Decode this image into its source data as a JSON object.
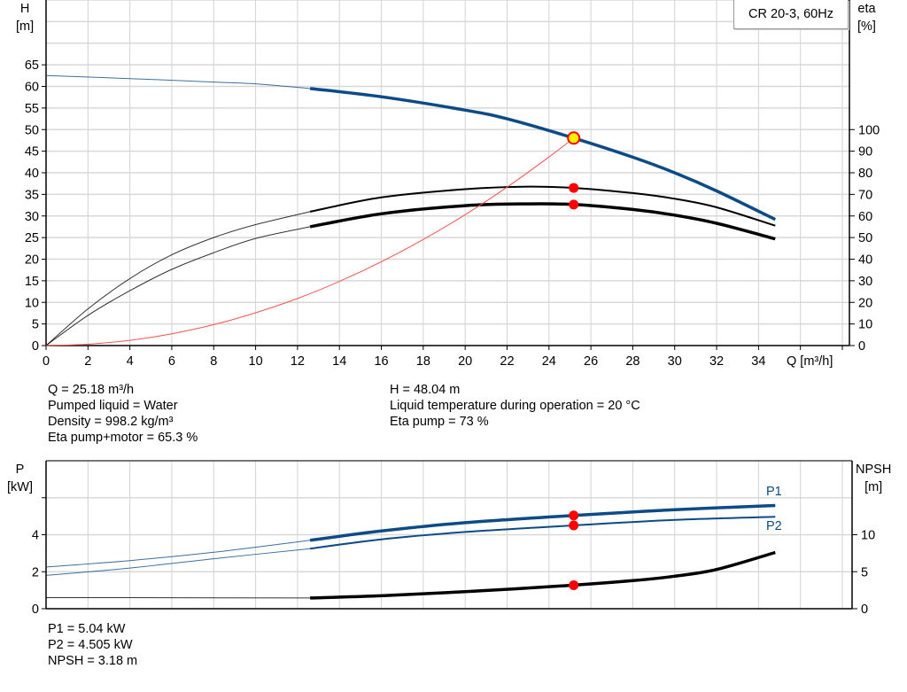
{
  "legend": "CR 20-3, 60Hz",
  "chart_data": [
    {
      "type": "line",
      "name_shown": "",
      "x_axis": {
        "label": "Q [m³/h]",
        "range": [
          0,
          38
        ],
        "ticks": [
          0,
          2,
          4,
          6,
          8,
          10,
          12,
          14,
          16,
          18,
          20,
          22,
          24,
          26,
          28,
          30,
          32,
          34
        ],
        "grid_step": 2
      },
      "y_axis_left": {
        "label_line1": "H",
        "label_line2": "[m]",
        "range": [
          0,
          80
        ],
        "ticks": [
          0,
          5,
          10,
          15,
          20,
          25,
          30,
          35,
          40,
          45,
          50,
          55,
          60,
          65
        ],
        "grid_step": 5
      },
      "y_axis_right": {
        "label_line1": "eta",
        "label_line2": "[%]",
        "range": [
          0,
          160
        ],
        "ticks": [
          0,
          10,
          20,
          30,
          40,
          50,
          60,
          70,
          80,
          90,
          100
        ]
      },
      "grid": true,
      "series": [
        {
          "id": "H",
          "axis": "left",
          "color": "#0c4a88",
          "thin": [
            [
              0,
              62.5
            ],
            [
              4,
              61.8
            ],
            [
              8,
              61.0
            ],
            [
              10,
              60.6
            ],
            [
              12.6,
              59.5
            ]
          ],
          "thick": [
            [
              12.6,
              59.5
            ],
            [
              16,
              57.6
            ],
            [
              20,
              54.5
            ],
            [
              22,
              52.5
            ],
            [
              25.18,
              48.04
            ],
            [
              28,
              43.6
            ],
            [
              30,
              40.0
            ],
            [
              32,
              35.8
            ],
            [
              34.8,
              29.2
            ]
          ]
        },
        {
          "id": "eta-pump",
          "axis": "right",
          "color": "#000000",
          "thin": [
            [
              0,
              0
            ],
            [
              2,
              17
            ],
            [
              4,
              31
            ],
            [
              6,
              42
            ],
            [
              8,
              50
            ],
            [
              10,
              56
            ],
            [
              12.6,
              62
            ]
          ],
          "thick": [
            [
              12.6,
              62
            ],
            [
              16,
              68.6
            ],
            [
              20,
              72.4
            ],
            [
              23,
              73.6
            ],
            [
              25.18,
              73
            ],
            [
              28,
              70.6
            ],
            [
              30,
              68
            ],
            [
              32,
              64
            ],
            [
              34.8,
              55.5
            ]
          ]
        },
        {
          "id": "eta-pump-motor",
          "axis": "right",
          "color": "#000000",
          "thin": [
            [
              0,
              0
            ],
            [
              2,
              14
            ],
            [
              4,
              25.4
            ],
            [
              6,
              35.3
            ],
            [
              8,
              43
            ],
            [
              10,
              49.6
            ],
            [
              12.6,
              55
            ]
          ],
          "thick": [
            [
              12.6,
              55
            ],
            [
              16,
              61
            ],
            [
              20,
              64.8
            ],
            [
              23,
              65.6
            ],
            [
              25.18,
              65.3
            ],
            [
              28,
              63
            ],
            [
              30,
              60.4
            ],
            [
              32,
              56.6
            ],
            [
              34.8,
              49.4
            ]
          ]
        },
        {
          "id": "system-curve",
          "axis": "left",
          "color": "#ff5050",
          "thin": [
            [
              0,
              0
            ],
            [
              2,
              0.3
            ],
            [
              4,
              1.21
            ],
            [
              6,
              2.73
            ],
            [
              8,
              4.85
            ],
            [
              10,
              7.58
            ],
            [
              12,
              10.9
            ],
            [
              14,
              14.86
            ],
            [
              16,
              19.4
            ],
            [
              18,
              24.56
            ],
            [
              20,
              30.3
            ],
            [
              22,
              36.67
            ],
            [
              24,
              43.65
            ],
            [
              25.18,
              48.04
            ]
          ],
          "thick": []
        }
      ],
      "duty_point": {
        "Q": 25.18,
        "H": 48.04,
        "eta_pump": 73,
        "eta_pump_motor": 65.3,
        "marker_color": "#ffee00",
        "dot_color": "#ff0000"
      }
    },
    {
      "type": "line",
      "x_axis": {
        "range": [
          0,
          38
        ],
        "grid_step": 2
      },
      "y_axis_left": {
        "label_line1": "P",
        "label_line2": "[kW]",
        "range": [
          0,
          8
        ],
        "ticks": [
          0,
          2,
          4
        ],
        "grid_step": 2
      },
      "y_axis_right": {
        "label_line1": "NPSH",
        "label_line2": "[m]",
        "range": [
          0,
          20
        ],
        "ticks": [
          0,
          5,
          10
        ]
      },
      "grid": true,
      "series": [
        {
          "id": "P1",
          "name": "P1",
          "axis": "left",
          "color": "#0c4a88",
          "thin": [
            [
              0,
              2.25
            ],
            [
              4,
              2.6
            ],
            [
              8,
              3.05
            ],
            [
              12.6,
              3.7
            ]
          ],
          "thick": [
            [
              12.6,
              3.7
            ],
            [
              16,
              4.2
            ],
            [
              20,
              4.65
            ],
            [
              25.18,
              5.04
            ],
            [
              30,
              5.35
            ],
            [
              34.8,
              5.58
            ]
          ]
        },
        {
          "id": "P2",
          "name": "P2",
          "axis": "left",
          "color": "#0c4a88",
          "thin": [
            [
              0,
              1.8
            ],
            [
              4,
              2.2
            ],
            [
              8,
              2.7
            ],
            [
              12.6,
              3.25
            ]
          ],
          "thick": [
            [
              12.6,
              3.25
            ],
            [
              16,
              3.75
            ],
            [
              20,
              4.15
            ],
            [
              25.18,
              4.505
            ],
            [
              30,
              4.8
            ],
            [
              34.8,
              4.97
            ]
          ]
        },
        {
          "id": "NPSH",
          "axis": "right",
          "color": "#000000",
          "thin": [
            [
              0,
              1.5
            ],
            [
              6,
              1.48
            ],
            [
              12.6,
              1.45
            ]
          ],
          "thick": [
            [
              12.6,
              1.45
            ],
            [
              16,
              1.75
            ],
            [
              20,
              2.3
            ],
            [
              25.18,
              3.18
            ],
            [
              28,
              3.8
            ],
            [
              30,
              4.4
            ],
            [
              32,
              5.3
            ],
            [
              34.8,
              7.6
            ]
          ]
        }
      ],
      "duty_point": {
        "Q": 25.18,
        "P1": 5.04,
        "P2": 4.505,
        "NPSH": 3.18,
        "dot_color": "#ff0000"
      }
    }
  ],
  "results_top": {
    "left": [
      "Q = 25.18 m³/h",
      "Pumped liquid = Water",
      "Density = 998.2 kg/m³",
      "Eta pump+motor = 65.3 %"
    ],
    "right": [
      "H = 48.04 m",
      "Liquid temperature during operation = 20 °C",
      "Eta pump = 73 %"
    ]
  },
  "results_bottom": [
    "P1 = 5.04 kW",
    "P2 = 4.505 kW",
    "NPSH = 3.18 m"
  ]
}
